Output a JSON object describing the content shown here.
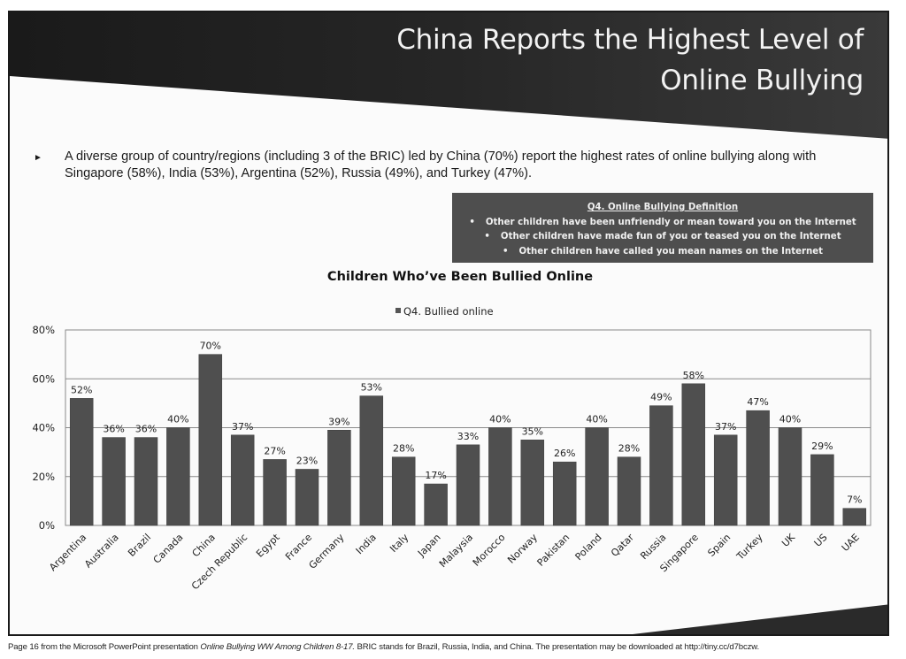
{
  "slide": {
    "title_line1": "China Reports the Highest Level of",
    "title_line2": "Online Bullying",
    "bullet_icon": "arrow-bullet-icon",
    "bullet_text": "A diverse group of country/regions (including 3 of the BRIC) led by China (70%) report the highest rates of online bullying along with Singapore (58%),  India (53%), Argentina (52%), Russia (49%), and Turkey (47%).",
    "definition_box": {
      "heading": "Q4. Online Bullying Definition",
      "items": [
        "Other children have been unfriendly or mean toward you on the Internet",
        "Other children have made fun of you or teased you on the Internet",
        "Other children have called you mean names on the Internet"
      ]
    }
  },
  "footer": {
    "prefix": "Page 16 from the Microsoft PowerPoint presentation ",
    "presentation_title": "Online Bullying WW Among Children 8-17.",
    "suffix": "  BRIC stands for Brazil, Russia, India, and China. The presentation may be downloaded at http://tiny.cc/d7bczw."
  },
  "colors": {
    "bar": "#4f4f4f",
    "banner": "#1e1e1e",
    "definition_box": "#4e4e4e",
    "gridline": "#8a8a8a"
  },
  "chart_data": {
    "type": "bar",
    "title": "Children Who’ve Been Bullied Online",
    "legend": [
      "Q4. Bullied online"
    ],
    "legend_position": "top",
    "xlabel": "",
    "ylabel": "",
    "ylim": [
      0,
      80
    ],
    "yticks": [
      "0%",
      "20%",
      "40%",
      "60%",
      "80%"
    ],
    "grid": true,
    "categories": [
      "Argentina",
      "Australia",
      "Brazil",
      "Canada",
      "China",
      "Czech Republic",
      "Egypt",
      "France",
      "Germany",
      "India",
      "Italy",
      "Japan",
      "Malaysia",
      "Morocco",
      "Norway",
      "Pakistan",
      "Poland",
      "Qatar",
      "Russia",
      "Singapore",
      "Spain",
      "Turkey",
      "UK",
      "US",
      "UAE"
    ],
    "series": [
      {
        "name": "Q4. Bullied online",
        "values": [
          52,
          36,
          36,
          40,
          70,
          37,
          27,
          23,
          39,
          53,
          28,
          17,
          33,
          40,
          35,
          26,
          40,
          28,
          49,
          58,
          37,
          47,
          40,
          29,
          7
        ]
      }
    ],
    "data_labels": [
      "52%",
      "36%",
      "36%",
      "40%",
      "70%",
      "37%",
      "27%",
      "23%",
      "39%",
      "53%",
      "28%",
      "17%",
      "33%",
      "40%",
      "35%",
      "26%",
      "40%",
      "28%",
      "49%",
      "58%",
      "37%",
      "47%",
      "40%",
      "29%",
      "7%"
    ]
  }
}
